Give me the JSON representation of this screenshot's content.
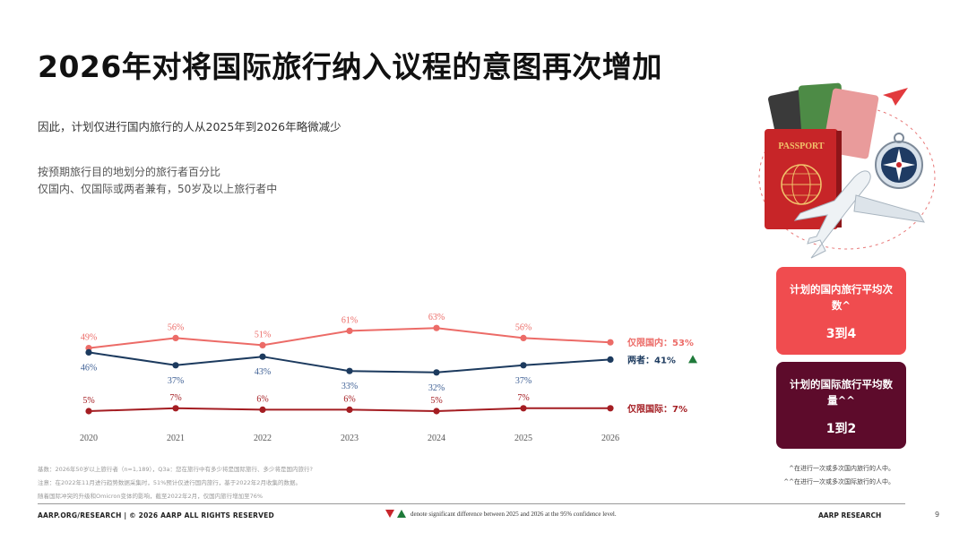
{
  "header": {
    "title": "2026年对将国际旅行纳入议程的意图再次增加",
    "subtitle": "因此，计划仅进行国内旅行的人从2025年到2026年略微减少",
    "note_line1": "按预期旅行目的地划分的旅行者百分比",
    "note_line2": "仅国内、仅国际或两者兼有，50岁及以上旅行者中"
  },
  "chart_data": {
    "type": "line",
    "x": [
      "2020",
      "2021",
      "2022",
      "2023",
      "2024",
      "2025",
      "2026"
    ],
    "series": [
      {
        "name": "仅限国内",
        "end_label": "仅限国内：53%",
        "color": "#ec6b67",
        "values": [
          49,
          56,
          51,
          61,
          63,
          56,
          53
        ],
        "labels": [
          "49%",
          "56%",
          "51%",
          "61%",
          "63%",
          "56%",
          ""
        ]
      },
      {
        "name": "两者",
        "end_label": "两者：41%",
        "color": "#1c3a5e",
        "label_color": "#3d5f94",
        "values": [
          46,
          37,
          43,
          33,
          32,
          37,
          41
        ],
        "labels": [
          "46%",
          "37%",
          "43%",
          "33%",
          "32%",
          "37%",
          ""
        ]
      },
      {
        "name": "仅限国际",
        "end_label": "仅限国际：7%",
        "color": "#a41d22",
        "values": [
          5,
          7,
          6,
          6,
          5,
          7,
          7
        ],
        "labels": [
          "5%",
          "7%",
          "6%",
          "6%",
          "5%",
          "7%",
          ""
        ]
      }
    ],
    "significance_marker": {
      "series": "两者",
      "direction": "up",
      "color": "#1f7a3a"
    }
  },
  "stats": {
    "domestic_label": "计划的国内旅行平均次数^",
    "domestic_value": "3到4",
    "domestic_color": "#f04c4f",
    "international_label": "计划的国际旅行平均数量^^",
    "international_value": "1到2",
    "international_color": "#5d0b2b"
  },
  "art": {
    "passport_text": "PASSPORT"
  },
  "footnotes": {
    "right1": "^在进行一次或多次国内旅行的人中。",
    "right2": "^^在进行一次或多次国际旅行的人中。",
    "source1": "基数：2026年50岁以上旅行者（n=1,189），Q3a：您在旅行中有多少将是国际旅行、多少将是国内旅行?",
    "source2": "注意：在2022年11月进行趋势数据采集时，51%预计仅进行国内旅行，基于2022年2月收集的数据。",
    "source3": "随着国际冲突的升级和Omicron变体的影响，截至2022年2月，仅国内旅行增加至76%"
  },
  "footer": {
    "left": "AARP.ORG/RESEARCH | © 2026 AARP ALL RIGHTS RESERVED",
    "middle": "denote significant difference between 2025 and 2026 at the 95% confidence level.",
    "right": "AARP RESEARCH",
    "page": "9"
  }
}
